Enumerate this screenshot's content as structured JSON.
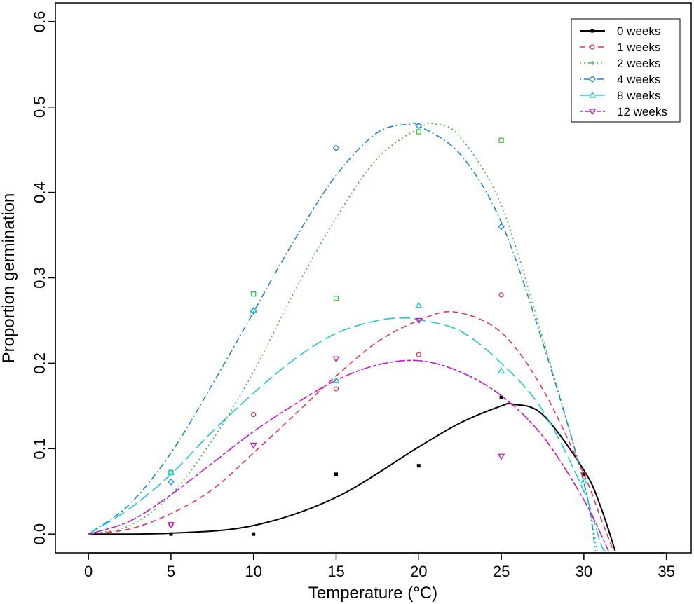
{
  "chart_data": {
    "type": "scatter",
    "title": "",
    "xlabel": "Temperature (°C)",
    "ylabel": "Proportion germination",
    "xlim": [
      -2,
      36.5
    ],
    "ylim": [
      -0.022,
      0.622
    ],
    "xticks": [
      0,
      5,
      10,
      15,
      20,
      25,
      30,
      35
    ],
    "xtick_labels": [
      "0",
      "5",
      "10",
      "15",
      "20",
      "25",
      "30",
      "35"
    ],
    "yticks": [
      0.0,
      0.1,
      0.2,
      0.3,
      0.4,
      0.5,
      0.6
    ],
    "ytick_labels": [
      "0.0",
      "0.1",
      "0.2",
      "0.3",
      "0.4",
      "0.5",
      "0.6"
    ],
    "grid": false,
    "legend_position": "top-right",
    "series": [
      {
        "name": "0 weeks",
        "color": "#000000",
        "marker": "filled-square",
        "linestyle": "solid",
        "points": [
          [
            5,
            0.0
          ],
          [
            10,
            0.0
          ],
          [
            15,
            0.07
          ],
          [
            20,
            0.08
          ],
          [
            25,
            0.16
          ],
          [
            30,
            0.07
          ]
        ],
        "fit": [
          [
            0,
            0.0
          ],
          [
            5,
            0.001
          ],
          [
            10,
            0.01
          ],
          [
            15,
            0.043
          ],
          [
            20,
            0.102
          ],
          [
            22.5,
            0.13
          ],
          [
            25,
            0.15
          ],
          [
            25.7,
            0.152
          ],
          [
            27.5,
            0.14
          ],
          [
            30,
            0.075
          ],
          [
            31,
            0.033
          ],
          [
            31.9,
            -0.02
          ]
        ]
      },
      {
        "name": "1 weeks",
        "color": "#e8344f",
        "marker": "open-circle",
        "linestyle": "dashed",
        "points": [
          [
            5,
            0.011
          ],
          [
            10,
            0.14
          ],
          [
            15,
            0.17
          ],
          [
            20,
            0.21
          ],
          [
            25,
            0.28
          ],
          [
            30,
            0.07
          ]
        ],
        "fit": [
          [
            0,
            0.0
          ],
          [
            2.5,
            0.006
          ],
          [
            5,
            0.024
          ],
          [
            7.5,
            0.052
          ],
          [
            10,
            0.095
          ],
          [
            12.5,
            0.14
          ],
          [
            15,
            0.185
          ],
          [
            17.5,
            0.225
          ],
          [
            20,
            0.25
          ],
          [
            22.2,
            0.26
          ],
          [
            25,
            0.236
          ],
          [
            27.5,
            0.17
          ],
          [
            30,
            0.07
          ],
          [
            31,
            0.02
          ],
          [
            31.8,
            -0.02
          ]
        ]
      },
      {
        "name": "2 weeks",
        "color": "#3dbb3d",
        "marker": "plus",
        "linestyle": "dotted",
        "points": [
          [
            5,
            0.072
          ],
          [
            10,
            0.281
          ],
          [
            15,
            0.276
          ],
          [
            20,
            0.471
          ],
          [
            25,
            0.461
          ]
        ],
        "fit": [
          [
            0,
            0.0
          ],
          [
            2.5,
            0.01
          ],
          [
            5,
            0.046
          ],
          [
            7.5,
            0.11
          ],
          [
            10,
            0.19
          ],
          [
            12.5,
            0.285
          ],
          [
            15,
            0.37
          ],
          [
            17.5,
            0.44
          ],
          [
            20,
            0.475
          ],
          [
            21,
            0.48
          ],
          [
            22.5,
            0.465
          ],
          [
            25,
            0.385
          ],
          [
            27.5,
            0.23
          ],
          [
            30,
            0.06
          ],
          [
            30.8,
            -0.02
          ]
        ]
      },
      {
        "name": "4 weeks",
        "color": "#1d84d6",
        "marker": "open-diamond",
        "linestyle": "dotdash",
        "points": [
          [
            5,
            0.061
          ],
          [
            10,
            0.261
          ],
          [
            15,
            0.452
          ],
          [
            20,
            0.478
          ],
          [
            25,
            0.36
          ]
        ],
        "fit": [
          [
            0,
            0.0
          ],
          [
            2.5,
            0.035
          ],
          [
            5,
            0.095
          ],
          [
            7.5,
            0.175
          ],
          [
            10,
            0.26
          ],
          [
            12.5,
            0.345
          ],
          [
            15,
            0.42
          ],
          [
            17.5,
            0.47
          ],
          [
            19.5,
            0.48
          ],
          [
            20,
            0.478
          ],
          [
            22.5,
            0.445
          ],
          [
            25,
            0.365
          ],
          [
            27.5,
            0.225
          ],
          [
            30,
            0.06
          ],
          [
            30.7,
            -0.02
          ]
        ]
      },
      {
        "name": "8 weeks",
        "color": "#1fc7d4",
        "marker": "open-triangle-up",
        "linestyle": "longdash",
        "points": [
          [
            5,
            0.072
          ],
          [
            10,
            0.262
          ],
          [
            15,
            0.18
          ],
          [
            20,
            0.268
          ],
          [
            25,
            0.191
          ],
          [
            30,
            0.062
          ]
        ],
        "fit": [
          [
            0,
            0.0
          ],
          [
            2.5,
            0.03
          ],
          [
            5,
            0.07
          ],
          [
            7.5,
            0.12
          ],
          [
            10,
            0.165
          ],
          [
            12.5,
            0.205
          ],
          [
            15,
            0.235
          ],
          [
            17.5,
            0.25
          ],
          [
            19,
            0.253
          ],
          [
            20,
            0.251
          ],
          [
            22.5,
            0.238
          ],
          [
            25,
            0.2
          ],
          [
            27.5,
            0.145
          ],
          [
            30,
            0.05
          ],
          [
            31,
            -0.01
          ],
          [
            31.3,
            -0.02
          ]
        ]
      },
      {
        "name": "12 weeks",
        "color": "#c815c8",
        "marker": "open-triangle-down",
        "linestyle": "twodash",
        "points": [
          [
            5,
            0.011
          ],
          [
            10,
            0.104
          ],
          [
            15,
            0.205
          ],
          [
            20,
            0.25
          ],
          [
            25,
            0.091
          ]
        ],
        "fit": [
          [
            0,
            0.0
          ],
          [
            2.5,
            0.015
          ],
          [
            5,
            0.046
          ],
          [
            7.5,
            0.083
          ],
          [
            10,
            0.12
          ],
          [
            12.5,
            0.152
          ],
          [
            15,
            0.18
          ],
          [
            17.5,
            0.198
          ],
          [
            20,
            0.203
          ],
          [
            22.5,
            0.19
          ],
          [
            25,
            0.162
          ],
          [
            27.5,
            0.115
          ],
          [
            30,
            0.04
          ],
          [
            31.5,
            -0.02
          ]
        ]
      }
    ]
  }
}
